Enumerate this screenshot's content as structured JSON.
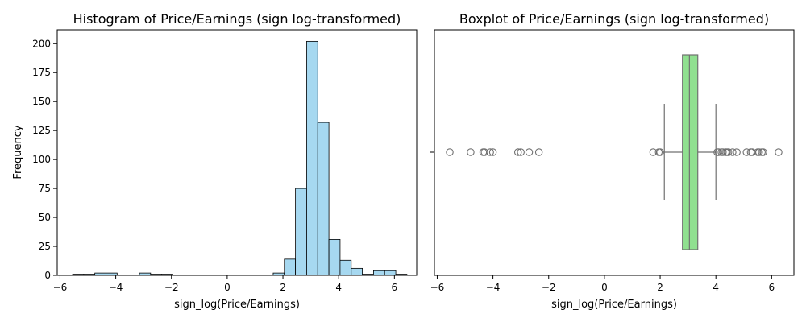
{
  "chart_data": [
    {
      "type": "bar",
      "subtype": "histogram",
      "title": "Histogram of Price/Earnings (sign log-transformed)",
      "xlabel": "sign_log(Price/Earnings)",
      "ylabel": "Frequency",
      "xlim": [
        -6.1,
        6.8
      ],
      "ylim": [
        0,
        212
      ],
      "xticks": [
        -6,
        -4,
        -2,
        0,
        2,
        4,
        6
      ],
      "yticks": [
        0,
        25,
        50,
        75,
        100,
        125,
        150,
        175,
        200
      ],
      "bar_color": "#a6d8f0",
      "edge_color": "#000000",
      "bins": [
        {
          "x0": -5.55,
          "x1": -5.15,
          "count": 1
        },
        {
          "x0": -5.15,
          "x1": -4.75,
          "count": 1
        },
        {
          "x0": -4.75,
          "x1": -4.35,
          "count": 2
        },
        {
          "x0": -4.35,
          "x1": -3.95,
          "count": 2
        },
        {
          "x0": -3.95,
          "x1": -3.55,
          "count": 0
        },
        {
          "x0": -3.55,
          "x1": -3.15,
          "count": 0
        },
        {
          "x0": -3.15,
          "x1": -2.75,
          "count": 2
        },
        {
          "x0": -2.75,
          "x1": -2.35,
          "count": 1
        },
        {
          "x0": -2.35,
          "x1": -1.95,
          "count": 1
        },
        {
          "x0": -1.95,
          "x1": -1.55,
          "count": 0
        },
        {
          "x0": -1.55,
          "x1": -1.15,
          "count": 0
        },
        {
          "x0": -1.15,
          "x1": -0.75,
          "count": 0
        },
        {
          "x0": -0.75,
          "x1": -0.35,
          "count": 0
        },
        {
          "x0": -0.35,
          "x1": 0.05,
          "count": 0
        },
        {
          "x0": 0.05,
          "x1": 0.45,
          "count": 0
        },
        {
          "x0": 0.45,
          "x1": 0.85,
          "count": 0
        },
        {
          "x0": 0.85,
          "x1": 1.25,
          "count": 0
        },
        {
          "x0": 1.25,
          "x1": 1.65,
          "count": 0
        },
        {
          "x0": 1.65,
          "x1": 2.05,
          "count": 2
        },
        {
          "x0": 2.05,
          "x1": 2.45,
          "count": 14
        },
        {
          "x0": 2.45,
          "x1": 2.85,
          "count": 75
        },
        {
          "x0": 2.85,
          "x1": 3.25,
          "count": 202
        },
        {
          "x0": 3.25,
          "x1": 3.65,
          "count": 132
        },
        {
          "x0": 3.65,
          "x1": 4.05,
          "count": 31
        },
        {
          "x0": 4.05,
          "x1": 4.45,
          "count": 13
        },
        {
          "x0": 4.45,
          "x1": 4.85,
          "count": 6
        },
        {
          "x0": 4.85,
          "x1": 5.25,
          "count": 1
        },
        {
          "x0": 5.25,
          "x1": 5.65,
          "count": 4
        },
        {
          "x0": 5.65,
          "x1": 6.05,
          "count": 4
        },
        {
          "x0": 6.05,
          "x1": 6.45,
          "count": 1
        }
      ]
    },
    {
      "type": "box",
      "title": "Boxplot of Price/Earnings (sign log-transformed)",
      "xlabel": "sign_log(Price/Earnings)",
      "ylabel": "",
      "xlim": [
        -6.1,
        6.8
      ],
      "xticks": [
        -6,
        -4,
        -2,
        0,
        2,
        4,
        6
      ],
      "box_color": "#90e090",
      "line_color": "#707070",
      "q1": 2.8,
      "median": 3.05,
      "q3": 3.35,
      "whisker_low": 2.15,
      "whisker_high": 4.0,
      "outliers": [
        -5.55,
        -4.8,
        -4.35,
        -4.3,
        -4.1,
        -4.0,
        -3.1,
        -3.0,
        -2.7,
        -2.35,
        1.75,
        1.95,
        2.0,
        4.05,
        4.1,
        4.2,
        4.25,
        4.35,
        4.4,
        4.45,
        4.6,
        4.75,
        5.1,
        5.25,
        5.3,
        5.5,
        5.55,
        5.65,
        5.7,
        6.25
      ]
    }
  ]
}
